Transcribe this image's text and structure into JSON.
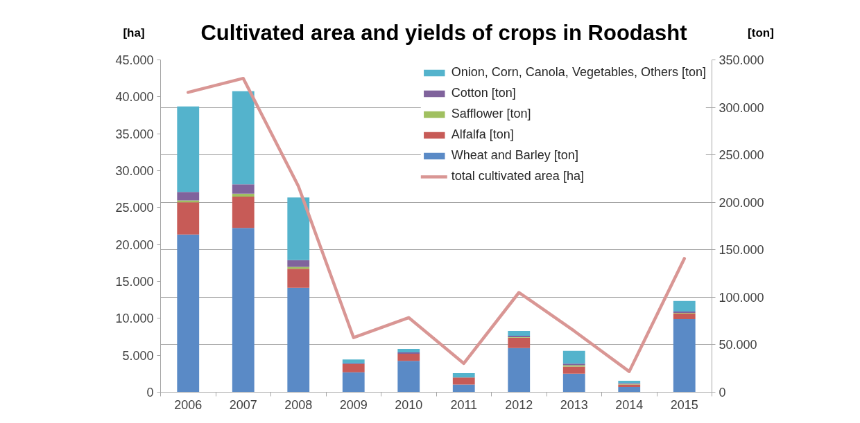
{
  "chart_data": {
    "type": "bar",
    "stacked": true,
    "title": "Cultivated area and yields of crops in Roodasht",
    "ylabel": "[ha]",
    "y2label": "[ton]",
    "categories": [
      "2006",
      "2007",
      "2008",
      "2009",
      "2010",
      "2011",
      "2012",
      "2013",
      "2014",
      "2015"
    ],
    "series": [
      {
        "name": "Wheat and Barley [ton]",
        "color": "#5a8ac6",
        "axis": "y2",
        "values": [
          166000,
          173000,
          110000,
          21000,
          33000,
          8000,
          46500,
          19500,
          5500,
          77000
        ]
      },
      {
        "name": "Alfalfa [ton]",
        "color": "#c75b57",
        "axis": "y2",
        "values": [
          34000,
          33000,
          20000,
          8500,
          7500,
          7500,
          11000,
          7500,
          2500,
          6000
        ]
      },
      {
        "name": "Safflower [ton]",
        "color": "#a0c060",
        "axis": "y2",
        "values": [
          2000,
          3000,
          2000,
          null,
          null,
          null,
          500,
          1500,
          500,
          500
        ]
      },
      {
        "name": "Cotton [ton]",
        "color": "#80639c",
        "axis": "y2",
        "values": [
          9000,
          10000,
          7000,
          1000,
          1500,
          null,
          1500,
          1500,
          1000,
          1500
        ]
      },
      {
        "name": "Onion, Corn, Canola, Vegetables, Others [ton]",
        "color": "#54b3cc",
        "axis": "y2",
        "values": [
          90000,
          98000,
          66000,
          4000,
          3500,
          4500,
          5000,
          13500,
          2500,
          11000
        ]
      },
      {
        "name": "total cultivated area [ha]",
        "type": "line",
        "color": "#d99694",
        "values": [
          40600,
          42500,
          27900,
          7400,
          10100,
          3900,
          13500,
          8300,
          2800,
          18100
        ]
      }
    ],
    "ylim": [
      0,
      45000
    ],
    "yticks": [
      0,
      {
        "value": 5000,
        "label": "5.000"
      },
      {
        "value": 10000,
        "label": "10.000"
      },
      {
        "value": 15000,
        "label": "15.000"
      },
      {
        "value": 20000,
        "label": "20.000"
      },
      {
        "value": 25000,
        "label": "25.000"
      },
      {
        "value": 30000,
        "label": "30.000"
      },
      {
        "value": 35000,
        "label": "35.000"
      },
      {
        "value": 40000,
        "label": "40.000"
      },
      {
        "value": 45000,
        "label": "45.000"
      }
    ],
    "y2lim": [
      0,
      350000
    ],
    "y2ticks": [
      0,
      {
        "value": 50000,
        "label": "50.000"
      },
      {
        "value": 100000,
        "label": "100.000"
      },
      {
        "value": 150000,
        "label": "150.000"
      },
      {
        "value": 200000,
        "label": "200.000"
      },
      {
        "value": 250000,
        "label": "250.000"
      },
      {
        "value": 300000,
        "label": "300.000"
      },
      {
        "value": 350000,
        "label": "350.000"
      }
    ],
    "grid": "y",
    "legend": "top right"
  }
}
